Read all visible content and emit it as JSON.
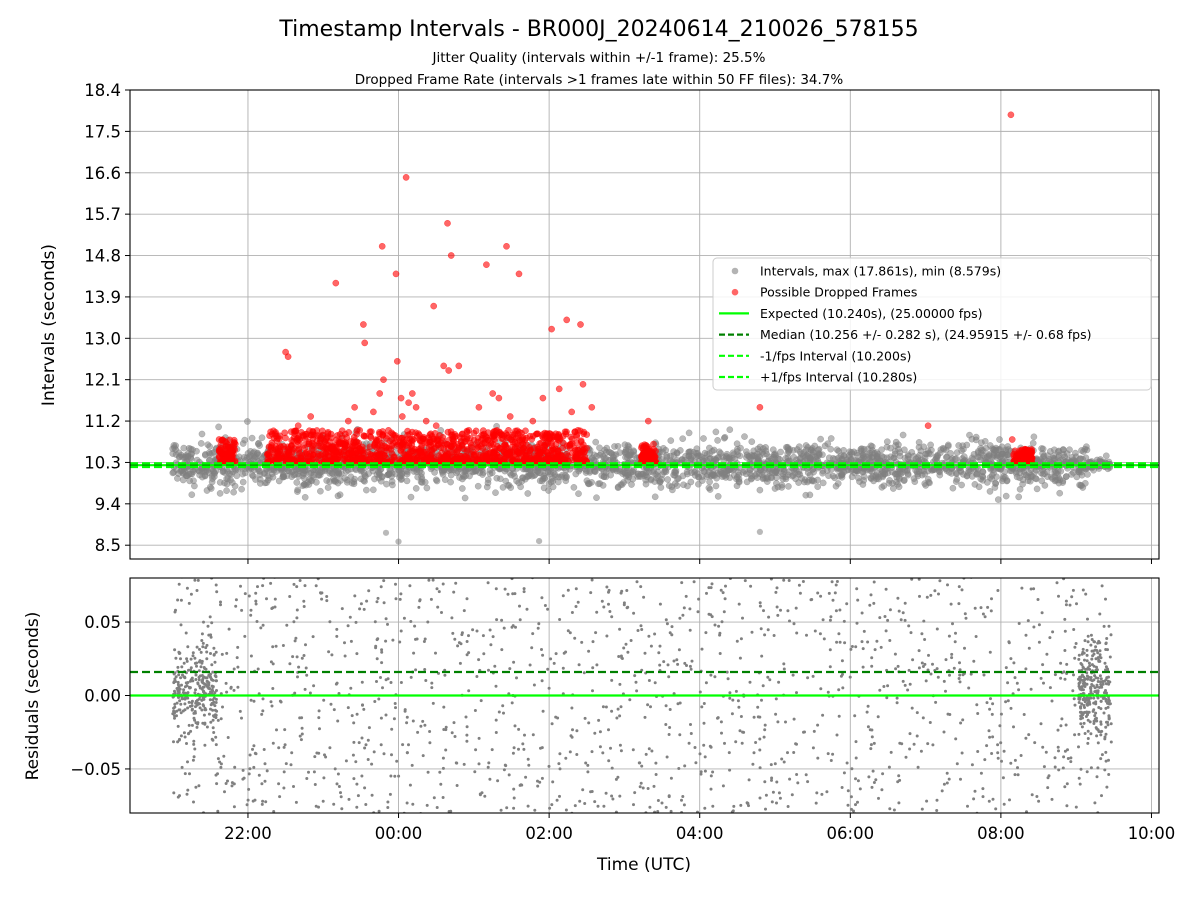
{
  "chart_data": [
    {
      "type": "scatter",
      "title": "Timestamp Intervals - BR000J_20240614_210026_578155",
      "subtitle_1": "Jitter Quality (intervals within +/-1 frame): 25.5%",
      "subtitle_2": "Dropped Frame Rate (intervals >1 frames late within 50 FF files): 34.7%",
      "xlabel": "",
      "ylabel": "Intervals (seconds)",
      "ylim": [
        8.2,
        18.4
      ],
      "xlim": [
        "20:26",
        "10:06"
      ],
      "y_ticks": [
        "8.5",
        "9.4",
        "10.3",
        "11.2",
        "12.1",
        "13.0",
        "13.9",
        "14.8",
        "15.7",
        "16.6",
        "17.5",
        "18.4"
      ],
      "grid": true,
      "legend_position": "right",
      "legend": [
        {
          "label": "Intervals, max (17.861s), min (8.579s)",
          "marker": "circle",
          "color": "#808080"
        },
        {
          "label": "Possible Dropped Frames",
          "marker": "circle",
          "color": "#ff0000"
        },
        {
          "label": "Expected (10.240s), (25.00000 fps)",
          "marker": "solid-line",
          "color": "#00ff00"
        },
        {
          "label": "Median (10.256 +/- 0.282 s), (24.95915 +/- 0.68 fps)",
          "marker": "dashed-line",
          "color": "#008000"
        },
        {
          "label": "-1/fps Interval (10.200s)",
          "marker": "dashed-line",
          "color": "#00ff00"
        },
        {
          "label": "+1/fps Interval (10.280s)",
          "marker": "dashed-line",
          "color": "#00ff00"
        }
      ],
      "reference_lines": [
        {
          "name": "Expected",
          "y": 10.24,
          "style": "solid",
          "color": "#00ff00"
        },
        {
          "name": "Median",
          "y": 10.256,
          "style": "dashed",
          "color": "#008000"
        },
        {
          "name": "-1/fps Interval",
          "y": 10.2,
          "style": "dashed",
          "color": "#00ff00"
        },
        {
          "name": "+1/fps Interval",
          "y": 10.28,
          "style": "dashed",
          "color": "#00ff00"
        }
      ],
      "series": [
        {
          "name": "Intervals",
          "color": "#808080",
          "time_range": [
            "21:00",
            "09:28"
          ],
          "center": 10.256,
          "spread": 0.28,
          "max": 17.861,
          "min": 8.579
        },
        {
          "name": "Possible Dropped Frames",
          "color": "#ff0000",
          "clusters": [
            {
              "range": [
                "21:37",
                "21:50"
              ],
              "band": [
                10.3,
                10.8
              ]
            },
            {
              "range": [
                "22:15",
                "02:30"
              ],
              "band": [
                10.3,
                11.0
              ]
            },
            {
              "range": [
                "03:13",
                "03:25"
              ],
              "band": [
                10.3,
                10.7
              ]
            },
            {
              "range": [
                "08:10",
                "08:25"
              ],
              "band": [
                10.3,
                10.6
              ]
            }
          ],
          "outliers": [
            {
              "x": "21:37",
              "y": 10.8
            },
            {
              "x": "22:30",
              "y": 12.7
            },
            {
              "x": "22:32",
              "y": 12.6
            },
            {
              "x": "22:40",
              "y": 11.1
            },
            {
              "x": "22:50",
              "y": 11.3
            },
            {
              "x": "23:10",
              "y": 14.2
            },
            {
              "x": "23:20",
              "y": 11.2
            },
            {
              "x": "23:25",
              "y": 11.5
            },
            {
              "x": "23:32",
              "y": 13.3
            },
            {
              "x": "23:33",
              "y": 12.9
            },
            {
              "x": "23:40",
              "y": 11.4
            },
            {
              "x": "23:45",
              "y": 11.8
            },
            {
              "x": "23:47",
              "y": 15.0
            },
            {
              "x": "23:48",
              "y": 12.1
            },
            {
              "x": "23:52",
              "y": 11.0
            },
            {
              "x": "23:58",
              "y": 14.4
            },
            {
              "x": "23:59",
              "y": 12.5
            },
            {
              "x": "00:02",
              "y": 11.7
            },
            {
              "x": "00:03",
              "y": 11.3
            },
            {
              "x": "00:06",
              "y": 16.5
            },
            {
              "x": "00:08",
              "y": 11.6
            },
            {
              "x": "00:11",
              "y": 11.8
            },
            {
              "x": "00:14",
              "y": 11.5
            },
            {
              "x": "00:22",
              "y": 11.2
            },
            {
              "x": "00:28",
              "y": 13.7
            },
            {
              "x": "00:30",
              "y": 11.1
            },
            {
              "x": "00:36",
              "y": 12.4
            },
            {
              "x": "00:39",
              "y": 15.5
            },
            {
              "x": "00:40",
              "y": 12.3
            },
            {
              "x": "00:42",
              "y": 14.8
            },
            {
              "x": "00:48",
              "y": 12.4
            },
            {
              "x": "00:56",
              "y": 11.0
            },
            {
              "x": "01:04",
              "y": 11.5
            },
            {
              "x": "01:10",
              "y": 14.6
            },
            {
              "x": "01:15",
              "y": 11.8
            },
            {
              "x": "01:20",
              "y": 11.7
            },
            {
              "x": "01:26",
              "y": 15.0
            },
            {
              "x": "01:29",
              "y": 11.3
            },
            {
              "x": "01:36",
              "y": 14.4
            },
            {
              "x": "01:47",
              "y": 11.2
            },
            {
              "x": "01:55",
              "y": 11.7
            },
            {
              "x": "02:02",
              "y": 13.2
            },
            {
              "x": "02:08",
              "y": 11.9
            },
            {
              "x": "02:14",
              "y": 13.4
            },
            {
              "x": "02:18",
              "y": 11.4
            },
            {
              "x": "02:25",
              "y": 13.3
            },
            {
              "x": "02:27",
              "y": 12.0
            },
            {
              "x": "02:34",
              "y": 11.5
            },
            {
              "x": "03:19",
              "y": 11.2
            },
            {
              "x": "04:48",
              "y": 11.5
            },
            {
              "x": "07:02",
              "y": 11.1
            },
            {
              "x": "08:08",
              "y": 17.86
            },
            {
              "x": "08:09",
              "y": 10.8
            }
          ]
        }
      ]
    },
    {
      "type": "scatter",
      "title": "",
      "xlabel": "Time (UTC)",
      "ylabel": "Residuals (seconds)",
      "ylim": [
        -0.08,
        0.08
      ],
      "xlim": [
        "20:26",
        "10:06"
      ],
      "y_ticks": [
        "−0.05",
        "0.00",
        "0.05"
      ],
      "x_ticks": [
        "22:00",
        "00:00",
        "02:00",
        "04:00",
        "06:00",
        "08:00",
        "10:00"
      ],
      "grid": true,
      "reference_lines": [
        {
          "name": "Expected",
          "y": 0.0,
          "style": "solid",
          "color": "#00ff00"
        },
        {
          "name": "Median",
          "y": 0.016,
          "style": "dashed",
          "color": "#008000"
        }
      ],
      "series": [
        {
          "name": "Residuals",
          "color": "#808080",
          "time_range": [
            "21:00",
            "09:28"
          ],
          "dense_clusters": [
            {
              "range": [
                "21:00",
                "21:35"
              ],
              "band": [
                -0.03,
                0.04
              ]
            },
            {
              "range": [
                "09:02",
                "09:28"
              ],
              "band": [
                -0.03,
                0.04
              ]
            }
          ]
        }
      ]
    }
  ]
}
